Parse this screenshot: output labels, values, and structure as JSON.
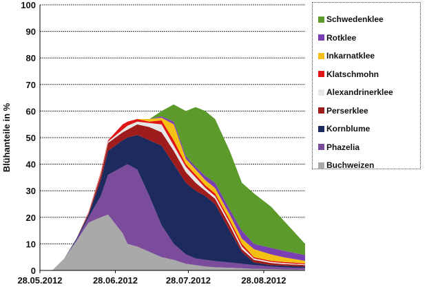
{
  "chart_data": {
    "type": "area",
    "stacked": true,
    "title": "",
    "xlabel": "",
    "ylabel": "Blühanteile in %",
    "ylim": [
      0,
      100
    ],
    "yticks": [
      0,
      10,
      20,
      30,
      40,
      50,
      60,
      70,
      80,
      90,
      100
    ],
    "xlim_days": [
      0,
      109
    ],
    "xticks": [
      {
        "day": 0,
        "label": "28.05.2012"
      },
      {
        "day": 31,
        "label": "28.06.2012"
      },
      {
        "day": 61,
        "label": "28.07.2012"
      },
      {
        "day": 92,
        "label": "28.08.2012"
      }
    ],
    "grid": "horizontal-dotted",
    "legend_position": "right",
    "x_days": [
      0,
      5,
      10,
      15,
      20,
      25,
      28,
      34,
      36,
      40,
      45,
      50,
      55,
      60,
      64,
      68,
      72,
      78,
      83,
      88,
      95,
      100,
      105,
      109
    ],
    "series": [
      {
        "name": "Buchweizen",
        "color": "#a9a9a9",
        "values": [
          0,
          0,
          4.5,
          11,
          18,
          20,
          21,
          14,
          10,
          9,
          7,
          5,
          4,
          2.5,
          2,
          1.5,
          1.2,
          1,
          0.8,
          0.6,
          0.5,
          0.4,
          0.3,
          0.3
        ]
      },
      {
        "name": "Phazelia",
        "color": "#7b4c9c",
        "values": [
          0,
          0,
          0,
          0.5,
          2,
          8,
          15,
          25,
          30,
          29,
          21,
          12,
          6,
          3.5,
          2.5,
          2.5,
          2.3,
          2,
          1.7,
          1.4,
          1,
          0.8,
          0.7,
          0.7
        ]
      },
      {
        "name": "Kornblume",
        "color": "#1c2a5e",
        "values": [
          0,
          0,
          0,
          0.5,
          1,
          6,
          9,
          10,
          10,
          13,
          21,
          30,
          30,
          27,
          25.5,
          24,
          21.5,
          12,
          4.5,
          1,
          0.5,
          0.6,
          0.6,
          0.5
        ]
      },
      {
        "name": "Perserklee",
        "color": "#9e1c1c",
        "values": [
          0,
          0,
          0,
          0,
          0.5,
          2,
          3,
          3,
          3,
          4,
          5,
          5,
          5,
          4,
          3,
          2,
          2,
          2,
          1,
          1,
          0.8,
          0.6,
          0.6,
          0.5
        ]
      },
      {
        "name": "Alexandrinerklee",
        "color": "#e6e6e6",
        "values": [
          0,
          0,
          0,
          0,
          0.2,
          0.5,
          0.5,
          1,
          1.5,
          1,
          1.5,
          3,
          2,
          2,
          2,
          1,
          1,
          1,
          1,
          0.5,
          0.4,
          0.4,
          0.3,
          0.3
        ]
      },
      {
        "name": "Klatschmohn",
        "color": "#e01515",
        "values": [
          0,
          0,
          0,
          0,
          0.3,
          0.5,
          0.5,
          2,
          1.5,
          1,
          0.5,
          1.5,
          2,
          1,
          1,
          1,
          1,
          1,
          1,
          0.5,
          0.4,
          0.4,
          0.4,
          0.3
        ]
      },
      {
        "name": "Inkarnatklee",
        "color": "#f5c014",
        "values": [
          0,
          0,
          0,
          0,
          0,
          0,
          0,
          0,
          0,
          0,
          1,
          1,
          6,
          2,
          2,
          2,
          2,
          2,
          2,
          3,
          2.4,
          1.8,
          1.3,
          1
        ]
      },
      {
        "name": "Rotklee",
        "color": "#7a3fb2",
        "values": [
          0,
          0,
          0,
          0,
          0,
          0,
          0,
          0,
          0,
          0,
          0,
          0.5,
          1,
          1,
          1,
          1.5,
          2,
          2,
          3,
          2,
          2.5,
          2.5,
          2.3,
          2.2
        ]
      },
      {
        "name": "Schwedenklee",
        "color": "#5c9a2c",
        "values": [
          0,
          0,
          0,
          0,
          0,
          0,
          0,
          0,
          0,
          0,
          0,
          2,
          6.5,
          17,
          22.5,
          24.5,
          24,
          22,
          18,
          19,
          15.5,
          11.5,
          7.5,
          4.2
        ]
      }
    ],
    "legend_order": [
      "Schwedenklee",
      "Rotklee",
      "Inkarnatklee",
      "Klatschmohn",
      "Alexandrinerklee",
      "Perserklee",
      "Kornblume",
      "Phazelia",
      "Buchweizen"
    ]
  }
}
